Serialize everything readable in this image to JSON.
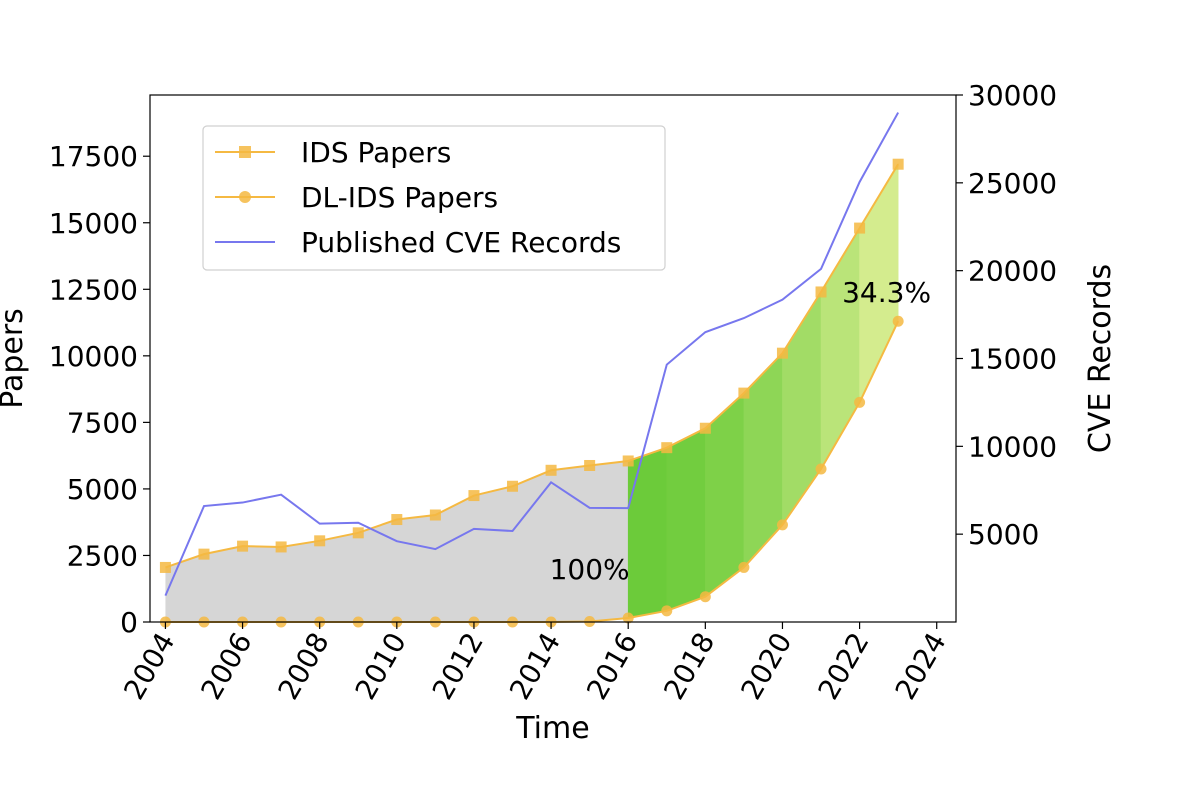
{
  "chart_data": {
    "type": "line",
    "x_label": "Time",
    "y_label_left": "Papers",
    "y_label_right": "CVE Records",
    "x_ticks": [
      2004,
      2006,
      2008,
      2010,
      2012,
      2014,
      2016,
      2018,
      2020,
      2022,
      2024
    ],
    "x_tick_labels": [
      "2004",
      "2006",
      "2008",
      "2010",
      "2012",
      "2014",
      "2016",
      "2018",
      "2020",
      "2022",
      "2024"
    ],
    "y_left_ticks": [
      0,
      2500,
      5000,
      7500,
      10000,
      12500,
      15000,
      17500
    ],
    "y_left_tick_labels": [
      "0",
      "2500",
      "5000",
      "7500",
      "10000",
      "12500",
      "15000",
      "17500"
    ],
    "y_right_ticks": [
      5000,
      10000,
      15000,
      20000,
      25000,
      30000
    ],
    "y_right_tick_labels": [
      "5000",
      "10000",
      "15000",
      "20000",
      "25000",
      "30000"
    ],
    "x_range": [
      2003.6,
      2024.5
    ],
    "y_left_range": [
      0,
      19800
    ],
    "y_right_range": [
      0,
      30000
    ],
    "x": [
      2004,
      2005,
      2006,
      2007,
      2008,
      2009,
      2010,
      2011,
      2012,
      2013,
      2014,
      2015,
      2016,
      2017,
      2018,
      2019,
      2020,
      2021,
      2022,
      2023
    ],
    "series": [
      {
        "name": "IDS Papers",
        "axis": "left",
        "marker": "square",
        "color": "#f5b942",
        "values": [
          2050,
          2550,
          2850,
          2820,
          3050,
          3350,
          3850,
          4020,
          4750,
          5100,
          5700,
          5880,
          6050,
          6550,
          7280,
          8600,
          10100,
          12400,
          14800,
          17200
        ]
      },
      {
        "name": "DL-IDS Papers",
        "axis": "left",
        "marker": "circle",
        "color": "#f5b942",
        "values": [
          0,
          0,
          0,
          0,
          0,
          0,
          0,
          0,
          0,
          0,
          0,
          20,
          150,
          420,
          950,
          2050,
          3650,
          5750,
          8250,
          11300
        ]
      },
      {
        "name": "Published CVE Records",
        "axis": "right",
        "marker": "none",
        "color": "#7777ee",
        "values": [
          1500,
          6600,
          6800,
          7250,
          5600,
          5650,
          4600,
          4150,
          5300,
          5180,
          7950,
          6500,
          6480,
          14650,
          16500,
          17300,
          18350,
          20100,
          25050,
          29000
        ]
      }
    ],
    "annotations": [
      {
        "text": "100%",
        "x": 2015.0,
        "y": 2000
      },
      {
        "text": "34.3%",
        "x": 2022.7,
        "y": 12400
      }
    ],
    "fill_colors": {
      "gray": "#d6d6d6",
      "green_start": "#6ccb3a",
      "green_end": "#d4ec8e"
    },
    "legend_position": "upper-left"
  }
}
